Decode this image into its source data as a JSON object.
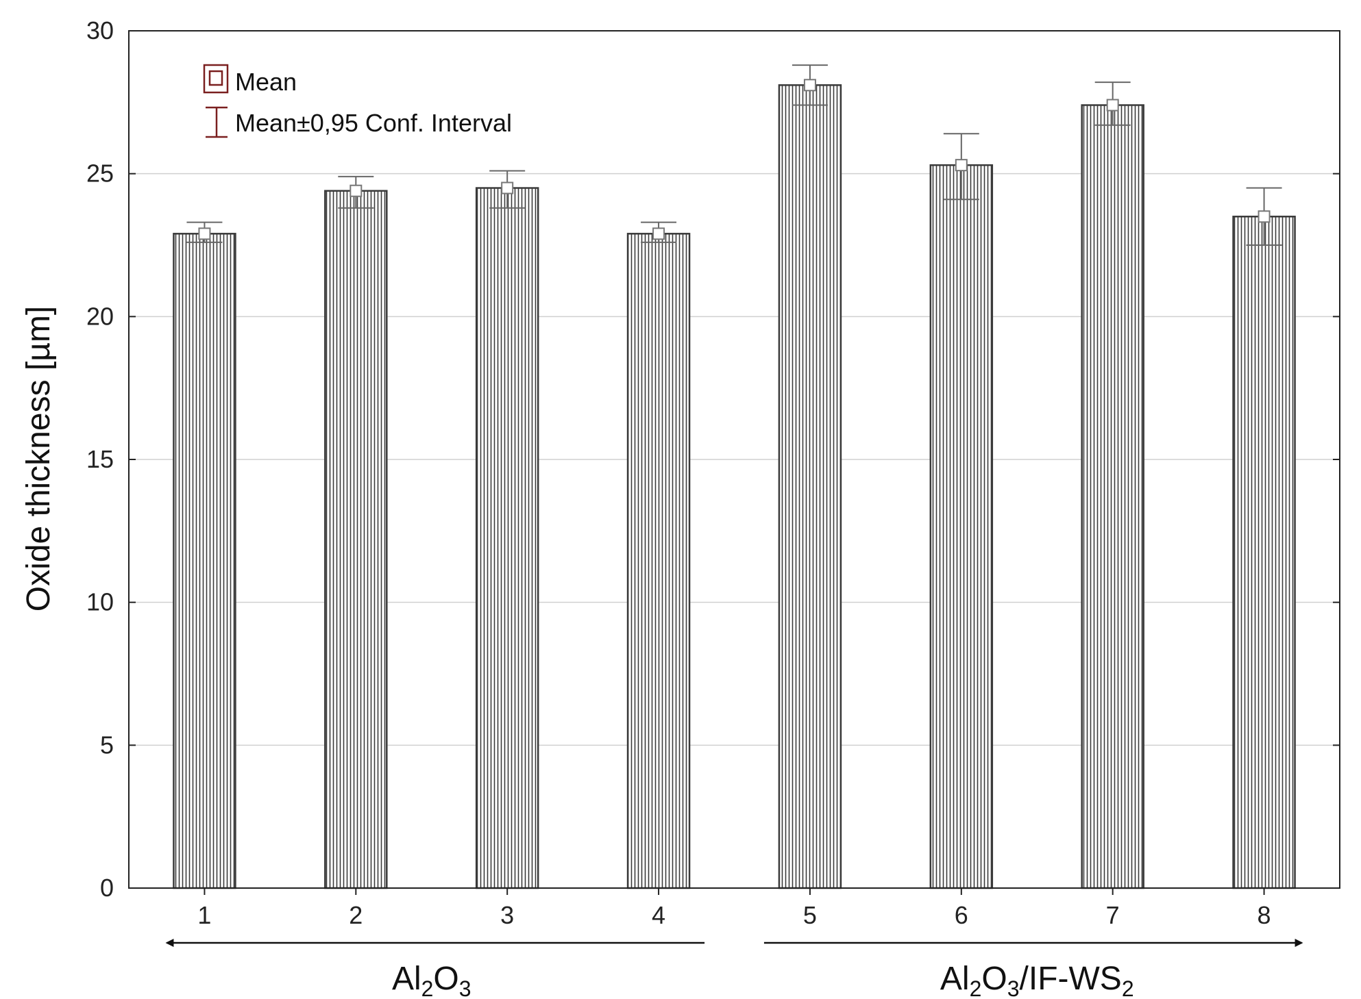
{
  "chart_data": {
    "type": "bar",
    "ylabel": "Oxide thickness [µm]",
    "xlabel": "",
    "ylim": [
      0,
      30
    ],
    "yticks": [
      "0",
      "5",
      "10",
      "15",
      "20",
      "25",
      "30"
    ],
    "categories": [
      "1",
      "2",
      "3",
      "4",
      "5",
      "6",
      "7",
      "8"
    ],
    "values": [
      22.9,
      24.4,
      24.5,
      22.9,
      28.1,
      25.3,
      27.4,
      23.5
    ],
    "ci_lower": [
      22.6,
      23.8,
      23.8,
      22.6,
      27.4,
      24.1,
      26.7,
      22.5
    ],
    "ci_upper": [
      23.3,
      24.9,
      25.1,
      23.3,
      28.8,
      26.4,
      28.2,
      24.5
    ],
    "grid": true,
    "legend_position": "top-left",
    "legend": {
      "mean": "Mean",
      "ci": "Mean±0,95 Conf. Interval"
    },
    "groups": [
      {
        "base": "Al",
        "sub1": "2",
        "mid": "O",
        "sub2": "3",
        "suffix": "",
        "sub3": "",
        "categories": [
          "1",
          "2",
          "3",
          "4"
        ],
        "arrow": "left"
      },
      {
        "base": "Al",
        "sub1": "2",
        "mid": "O",
        "sub2": "3",
        "suffix": "/IF-WS",
        "sub3": "2",
        "categories": [
          "5",
          "6",
          "7",
          "8"
        ],
        "arrow": "right"
      }
    ],
    "colors": {
      "bar_stroke": "#3a3a3a",
      "legend_marker": "#7a1f1f",
      "grid": "#d0d0d0"
    }
  }
}
